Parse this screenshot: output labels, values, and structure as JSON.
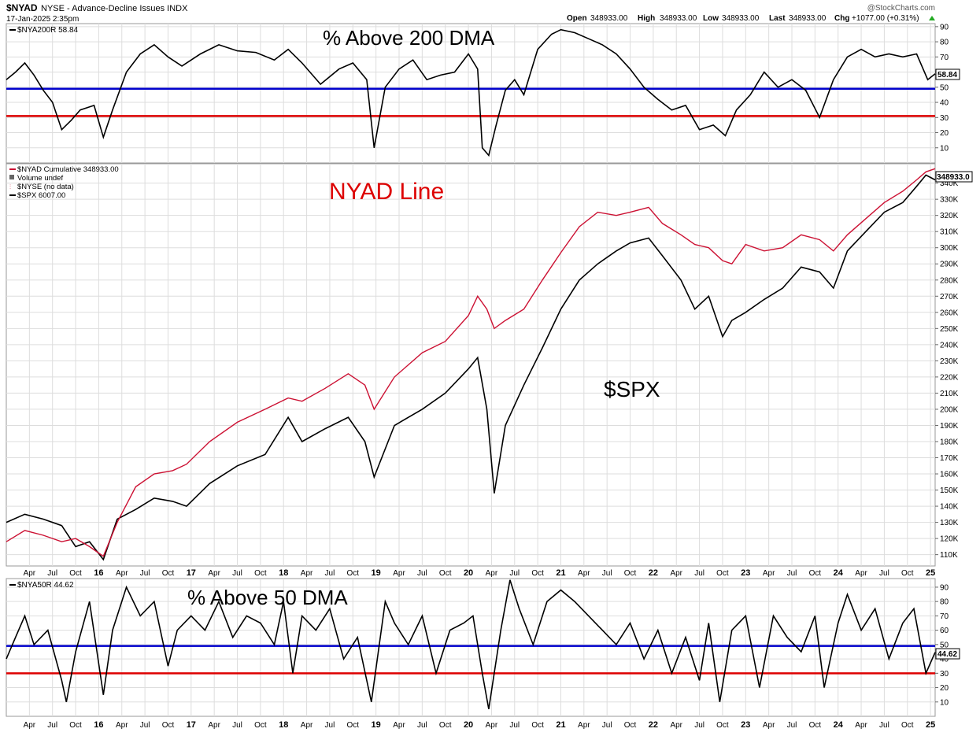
{
  "header": {
    "symbol": "$NYAD",
    "description": "NYSE - Advance-Decline Issues  INDX",
    "date": "17-Jan-2025 2:35pm",
    "watermark": "@StockCharts.com",
    "open_label": "Open",
    "open_value": "348933.00",
    "high_label": "High",
    "high_value": "348933.00",
    "low_label": "Low",
    "low_value": "348933.00",
    "last_label": "Last",
    "last_value": "348933.00",
    "chg_label": "Chg",
    "chg_value": "+1077.00 (+0.31%)"
  },
  "colors": {
    "ad_line": "#cc1133",
    "spx_line": "#000000",
    "level_blue": "#0000cc",
    "level_red": "#dd0000",
    "title_red": "#dd0000",
    "grid": "#dddddd",
    "border": "#999999"
  },
  "chart_data": [
    {
      "type": "line",
      "panel": "top",
      "legend": "$NYA200R 58.84",
      "title": "% Above 200 DMA",
      "last_value_label": "58.84",
      "ylim": [
        0,
        92
      ],
      "yticks": [
        10,
        20,
        30,
        40,
        50,
        60,
        70,
        80,
        90
      ],
      "reference_lines": [
        {
          "value": 49,
          "color": "blue"
        },
        {
          "value": 31,
          "color": "red"
        }
      ],
      "x": [
        2015.0,
        2015.1,
        2015.2,
        2015.3,
        2015.4,
        2015.5,
        2015.6,
        2015.7,
        2015.8,
        2015.95,
        2016.05,
        2016.15,
        2016.3,
        2016.45,
        2016.6,
        2016.75,
        2016.9,
        2017.1,
        2017.3,
        2017.5,
        2017.7,
        2017.9,
        2018.05,
        2018.2,
        2018.4,
        2018.6,
        2018.75,
        2018.9,
        2018.98,
        2019.1,
        2019.25,
        2019.4,
        2019.55,
        2019.7,
        2019.85,
        2020.0,
        2020.1,
        2020.15,
        2020.22,
        2020.3,
        2020.4,
        2020.5,
        2020.6,
        2020.75,
        2020.9,
        2021.0,
        2021.15,
        2021.3,
        2021.45,
        2021.6,
        2021.75,
        2021.9,
        2022.05,
        2022.2,
        2022.35,
        2022.5,
        2022.65,
        2022.78,
        2022.9,
        2023.05,
        2023.2,
        2023.35,
        2023.5,
        2023.65,
        2023.8,
        2023.95,
        2024.1,
        2024.25,
        2024.4,
        2024.55,
        2024.7,
        2024.85,
        2024.97,
        2025.05
      ],
      "values": [
        55,
        60,
        66,
        58,
        48,
        40,
        22,
        28,
        35,
        38,
        17,
        35,
        60,
        72,
        78,
        70,
        64,
        72,
        78,
        74,
        73,
        68,
        75,
        66,
        52,
        62,
        66,
        55,
        10,
        50,
        62,
        68,
        55,
        58,
        60,
        72,
        62,
        10,
        5,
        25,
        48,
        55,
        45,
        75,
        85,
        88,
        86,
        82,
        78,
        72,
        62,
        50,
        42,
        35,
        38,
        22,
        25,
        18,
        35,
        45,
        60,
        50,
        55,
        48,
        30,
        55,
        70,
        75,
        70,
        72,
        70,
        72,
        55,
        58.84
      ]
    },
    {
      "type": "line",
      "panel": "middle",
      "title": "NYAD Line",
      "annotation": "$SPX",
      "legend": [
        "$NYAD Cumulative 348933.00",
        "Volume undef",
        "$NYSE (no data)",
        "$SPX 6007.00"
      ],
      "last_value_label": "348933.0",
      "ylim": [
        103000,
        352000
      ],
      "yticks": [
        110000,
        120000,
        130000,
        140000,
        150000,
        160000,
        170000,
        180000,
        190000,
        200000,
        210000,
        220000,
        230000,
        240000,
        250000,
        260000,
        270000,
        280000,
        290000,
        300000,
        310000,
        320000,
        330000,
        340000
      ],
      "ytick_labels": [
        "110K",
        "120K",
        "130K",
        "140K",
        "150K",
        "160K",
        "170K",
        "180K",
        "190K",
        "200K",
        "210K",
        "220K",
        "230K",
        "240K",
        "250K",
        "260K",
        "270K",
        "280K",
        "290K",
        "300K",
        "310K",
        "320K",
        "330K",
        "340K"
      ],
      "x": [
        2015.0,
        2015.2,
        2015.4,
        2015.6,
        2015.75,
        2015.9,
        2016.05,
        2016.2,
        2016.4,
        2016.6,
        2016.8,
        2016.95,
        2017.2,
        2017.5,
        2017.8,
        2018.05,
        2018.2,
        2018.45,
        2018.7,
        2018.88,
        2018.98,
        2019.2,
        2019.5,
        2019.75,
        2020.0,
        2020.1,
        2020.2,
        2020.28,
        2020.4,
        2020.6,
        2020.8,
        2021.0,
        2021.2,
        2021.4,
        2021.6,
        2021.75,
        2021.95,
        2022.1,
        2022.3,
        2022.45,
        2022.6,
        2022.75,
        2022.85,
        2023.0,
        2023.2,
        2023.4,
        2023.6,
        2023.8,
        2023.95,
        2024.1,
        2024.3,
        2024.5,
        2024.7,
        2024.85,
        2024.95,
        2025.05
      ],
      "series": [
        {
          "name": "$NYAD Cumulative 348933.00",
          "color": "red",
          "values": [
            118000,
            125000,
            122000,
            118000,
            120000,
            115000,
            109000,
            130000,
            152000,
            160000,
            162000,
            166000,
            180000,
            192000,
            200000,
            207000,
            205000,
            213000,
            222000,
            215000,
            200000,
            220000,
            235000,
            242000,
            258000,
            270000,
            262000,
            250000,
            255000,
            262000,
            280000,
            297000,
            313000,
            322000,
            320000,
            322000,
            325000,
            315000,
            308000,
            302000,
            300000,
            292000,
            290000,
            302000,
            298000,
            300000,
            308000,
            305000,
            298000,
            308000,
            318000,
            328000,
            335000,
            342000,
            347000,
            348933
          ]
        },
        {
          "name": "$SPX 6007.00",
          "color": "black",
          "values": [
            130000,
            135000,
            132000,
            128000,
            115000,
            118000,
            107000,
            132000,
            138000,
            145000,
            143000,
            140000,
            154000,
            165000,
            172000,
            195000,
            180000,
            188000,
            195000,
            180000,
            158000,
            190000,
            200000,
            210000,
            225000,
            232000,
            200000,
            148000,
            190000,
            215000,
            238000,
            262000,
            280000,
            290000,
            298000,
            303000,
            306000,
            295000,
            280000,
            262000,
            270000,
            245000,
            255000,
            260000,
            268000,
            275000,
            288000,
            285000,
            275000,
            298000,
            310000,
            322000,
            328000,
            338000,
            345000,
            342000
          ]
        }
      ]
    },
    {
      "type": "line",
      "panel": "bottom",
      "legend": "$NYA50R 44.62",
      "title": "% Above 50 DMA",
      "last_value_label": "44.62",
      "ylim": [
        0,
        96
      ],
      "yticks": [
        10,
        20,
        30,
        40,
        50,
        60,
        70,
        80,
        90
      ],
      "reference_lines": [
        {
          "value": 49,
          "color": "blue"
        },
        {
          "value": 30,
          "color": "red"
        }
      ],
      "x": [
        2015.0,
        2015.1,
        2015.2,
        2015.3,
        2015.45,
        2015.6,
        2015.65,
        2015.75,
        2015.9,
        2016.05,
        2016.15,
        2016.3,
        2016.45,
        2016.6,
        2016.75,
        2016.85,
        2017.0,
        2017.15,
        2017.3,
        2017.45,
        2017.6,
        2017.75,
        2017.9,
        2018.0,
        2018.1,
        2018.2,
        2018.35,
        2018.5,
        2018.65,
        2018.8,
        2018.95,
        2019.1,
        2019.2,
        2019.35,
        2019.5,
        2019.65,
        2019.8,
        2019.95,
        2020.05,
        2020.15,
        2020.22,
        2020.35,
        2020.45,
        2020.55,
        2020.7,
        2020.85,
        2021.0,
        2021.15,
        2021.3,
        2021.45,
        2021.6,
        2021.75,
        2021.9,
        2022.05,
        2022.2,
        2022.35,
        2022.5,
        2022.6,
        2022.72,
        2022.85,
        2023.0,
        2023.15,
        2023.3,
        2023.45,
        2023.6,
        2023.75,
        2023.85,
        2024.0,
        2024.1,
        2024.25,
        2024.4,
        2024.55,
        2024.7,
        2024.82,
        2024.95,
        2025.05
      ],
      "values": [
        40,
        55,
        70,
        50,
        60,
        25,
        10,
        45,
        80,
        15,
        60,
        90,
        70,
        80,
        35,
        60,
        70,
        60,
        80,
        55,
        70,
        65,
        50,
        80,
        30,
        70,
        60,
        75,
        40,
        55,
        10,
        80,
        65,
        50,
        70,
        30,
        60,
        65,
        70,
        30,
        5,
        60,
        95,
        75,
        50,
        80,
        88,
        80,
        70,
        60,
        50,
        65,
        40,
        60,
        30,
        55,
        25,
        65,
        10,
        60,
        70,
        20,
        70,
        55,
        45,
        70,
        20,
        65,
        85,
        60,
        75,
        40,
        65,
        75,
        30,
        44.62
      ]
    }
  ],
  "x_axis": {
    "ticks": [
      {
        "pos": 2015.25,
        "label": "Apr"
      },
      {
        "pos": 2015.5,
        "label": "Jul"
      },
      {
        "pos": 2015.75,
        "label": "Oct"
      },
      {
        "pos": 2016.0,
        "label": "16"
      },
      {
        "pos": 2016.25,
        "label": "Apr"
      },
      {
        "pos": 2016.5,
        "label": "Jul"
      },
      {
        "pos": 2016.75,
        "label": "Oct"
      },
      {
        "pos": 2017.0,
        "label": "17"
      },
      {
        "pos": 2017.25,
        "label": "Apr"
      },
      {
        "pos": 2017.5,
        "label": "Jul"
      },
      {
        "pos": 2017.75,
        "label": "Oct"
      },
      {
        "pos": 2018.0,
        "label": "18"
      },
      {
        "pos": 2018.25,
        "label": "Apr"
      },
      {
        "pos": 2018.5,
        "label": "Jul"
      },
      {
        "pos": 2018.75,
        "label": "Oct"
      },
      {
        "pos": 2019.0,
        "label": "19"
      },
      {
        "pos": 2019.25,
        "label": "Apr"
      },
      {
        "pos": 2019.5,
        "label": "Jul"
      },
      {
        "pos": 2019.75,
        "label": "Oct"
      },
      {
        "pos": 2020.0,
        "label": "20"
      },
      {
        "pos": 2020.25,
        "label": "Apr"
      },
      {
        "pos": 2020.5,
        "label": "Jul"
      },
      {
        "pos": 2020.75,
        "label": "Oct"
      },
      {
        "pos": 2021.0,
        "label": "21"
      },
      {
        "pos": 2021.25,
        "label": "Apr"
      },
      {
        "pos": 2021.5,
        "label": "Jul"
      },
      {
        "pos": 2021.75,
        "label": "Oct"
      },
      {
        "pos": 2022.0,
        "label": "22"
      },
      {
        "pos": 2022.25,
        "label": "Apr"
      },
      {
        "pos": 2022.5,
        "label": "Jul"
      },
      {
        "pos": 2022.75,
        "label": "Oct"
      },
      {
        "pos": 2023.0,
        "label": "23"
      },
      {
        "pos": 2023.25,
        "label": "Apr"
      },
      {
        "pos": 2023.5,
        "label": "Jul"
      },
      {
        "pos": 2023.75,
        "label": "Oct"
      },
      {
        "pos": 2024.0,
        "label": "24"
      },
      {
        "pos": 2024.25,
        "label": "Apr"
      },
      {
        "pos": 2024.5,
        "label": "Jul"
      },
      {
        "pos": 2024.75,
        "label": "Oct"
      },
      {
        "pos": 2025.0,
        "label": "25"
      }
    ],
    "xlim": [
      2015.0,
      2025.05
    ]
  }
}
